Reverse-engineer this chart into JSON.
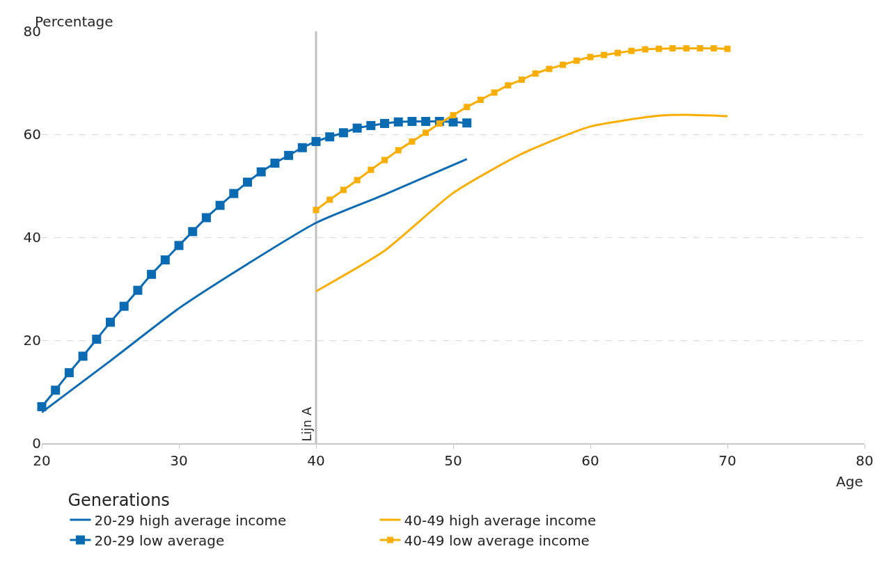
{
  "chart_data": {
    "type": "line",
    "xlabel": "Age",
    "ylabel": "Percentage",
    "legend_title": "Generations",
    "legend": "bottom",
    "grid": "y",
    "xlim": [
      20,
      80
    ],
    "xticks": [
      20,
      30,
      40,
      50,
      60,
      70,
      80
    ],
    "ylim": [
      0,
      80
    ],
    "yticks": [
      0,
      20,
      40,
      60,
      80
    ],
    "ref_lines": [
      {
        "axis": "x",
        "value": 40,
        "label": "Lijn A",
        "color": "#c0c0c0"
      }
    ],
    "series": [
      {
        "name": "20-29 high average income",
        "color": "#0a6ab2",
        "marker": "none",
        "x": [
          20,
          25,
          30,
          35,
          40,
          45,
          51
        ],
        "values": [
          6.0,
          16.0,
          26.2,
          34.8,
          42.8,
          48.3,
          55.2
        ]
      },
      {
        "name": "20-29 low average",
        "color": "#0a6ab2",
        "marker": "square",
        "x": [
          20,
          21,
          22,
          23,
          24,
          25,
          26,
          27,
          28,
          29,
          30,
          31,
          32,
          33,
          34,
          35,
          36,
          37,
          38,
          39,
          40,
          41,
          42,
          43,
          44,
          45,
          46,
          47,
          48,
          49,
          50,
          51
        ],
        "values": [
          7.1,
          10.3,
          13.7,
          16.9,
          20.2,
          23.5,
          26.6,
          29.7,
          32.8,
          35.6,
          38.4,
          41.1,
          43.8,
          46.2,
          48.5,
          50.7,
          52.7,
          54.4,
          55.9,
          57.4,
          58.6,
          59.5,
          60.3,
          61.2,
          61.7,
          62.1,
          62.4,
          62.5,
          62.5,
          62.5,
          62.4,
          62.2
        ]
      },
      {
        "name": "40-49 high average income",
        "color": "#f8ae00",
        "marker": "none",
        "x": [
          40,
          45,
          50,
          55,
          60,
          65,
          67,
          70
        ],
        "values": [
          29.5,
          37.4,
          48.6,
          56.2,
          61.5,
          63.6,
          63.8,
          63.5
        ]
      },
      {
        "name": "40-49 low average income",
        "color": "#f8ae00",
        "marker": "square",
        "x": [
          40,
          41,
          42,
          43,
          44,
          45,
          46,
          47,
          48,
          49,
          50,
          51,
          52,
          53,
          54,
          55,
          56,
          57,
          58,
          59,
          60,
          61,
          62,
          63,
          64,
          65,
          66,
          67,
          68,
          69,
          70
        ],
        "values": [
          45.3,
          47.3,
          49.2,
          51.1,
          53.1,
          55.0,
          56.9,
          58.6,
          60.3,
          62.1,
          63.7,
          65.3,
          66.7,
          68.1,
          69.5,
          70.6,
          71.8,
          72.7,
          73.5,
          74.3,
          75.0,
          75.4,
          75.8,
          76.2,
          76.5,
          76.6,
          76.7,
          76.7,
          76.7,
          76.7,
          76.6
        ]
      }
    ]
  }
}
